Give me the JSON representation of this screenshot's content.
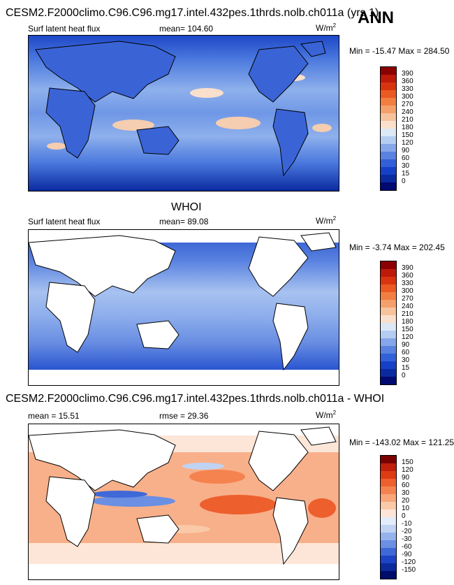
{
  "season": "ANN",
  "panels": [
    {
      "header": "CESM2.F2000climo.C96.C96.mg17.intel.432pes.1thrds.nolb.ch011a (yrs 1)",
      "variable": "Surf latent heat flux",
      "stat1": "mean= 104.60",
      "stat2": "",
      "units": "W/m",
      "units_exp": "2",
      "minmax": "Min = -15.47 Max = 284.50",
      "levels": [
        "390",
        "360",
        "330",
        "300",
        "270",
        "240",
        "210",
        "180",
        "150",
        "120",
        "90",
        "60",
        "30",
        "15",
        "0"
      ],
      "colors": [
        "#8b0000",
        "#bd1a0a",
        "#d8340f",
        "#ea5a22",
        "#f27e42",
        "#f5a06a",
        "#f7c39c",
        "#fae0cc",
        "#dde8f7",
        "#b6cdf2",
        "#85a7ea",
        "#5a82e0",
        "#3260d8",
        "#1640c8",
        "#0a2aa0",
        "#000a70"
      ]
    },
    {
      "header": "WHOI",
      "variable": "Surf latent heat flux",
      "stat1": "mean=  89.08",
      "stat2": "",
      "units": "W/m",
      "units_exp": "2",
      "minmax": "Min = -3.74 Max = 202.45",
      "levels": [
        "390",
        "360",
        "330",
        "300",
        "270",
        "240",
        "210",
        "180",
        "150",
        "120",
        "90",
        "60",
        "30",
        "15",
        "0"
      ],
      "colors": [
        "#8b0000",
        "#bd1a0a",
        "#d8340f",
        "#ea5a22",
        "#f27e42",
        "#f5a06a",
        "#f7c39c",
        "#fae0cc",
        "#dde8f7",
        "#b6cdf2",
        "#85a7ea",
        "#5a82e0",
        "#3260d8",
        "#1640c8",
        "#0a2aa0",
        "#000a70"
      ]
    },
    {
      "header": "CESM2.F2000climo.C96.C96.mg17.intel.432pes.1thrds.nolb.ch011a - WHOI",
      "variable": "",
      "stat1": "mean =  15.51",
      "stat2": "rmse =  29.36",
      "units": "W/m",
      "units_exp": "2",
      "minmax": "Min = -143.02 Max = 121.25",
      "levels": [
        "150",
        "120",
        "90",
        "60",
        "30",
        "20",
        "10",
        "0",
        "-10",
        "-20",
        "-30",
        "-60",
        "-90",
        "-120",
        "-150"
      ],
      "colors": [
        "#7a0000",
        "#c0200c",
        "#dd3b14",
        "#ee5f2e",
        "#f5834f",
        "#f8a67a",
        "#fac9a8",
        "#fde6d8",
        "#e3ecfa",
        "#c0d3f3",
        "#94b3ec",
        "#6a8fe3",
        "#3f68d8",
        "#1d44c4",
        "#0b2a9c",
        "#000c6a"
      ]
    }
  ]
}
